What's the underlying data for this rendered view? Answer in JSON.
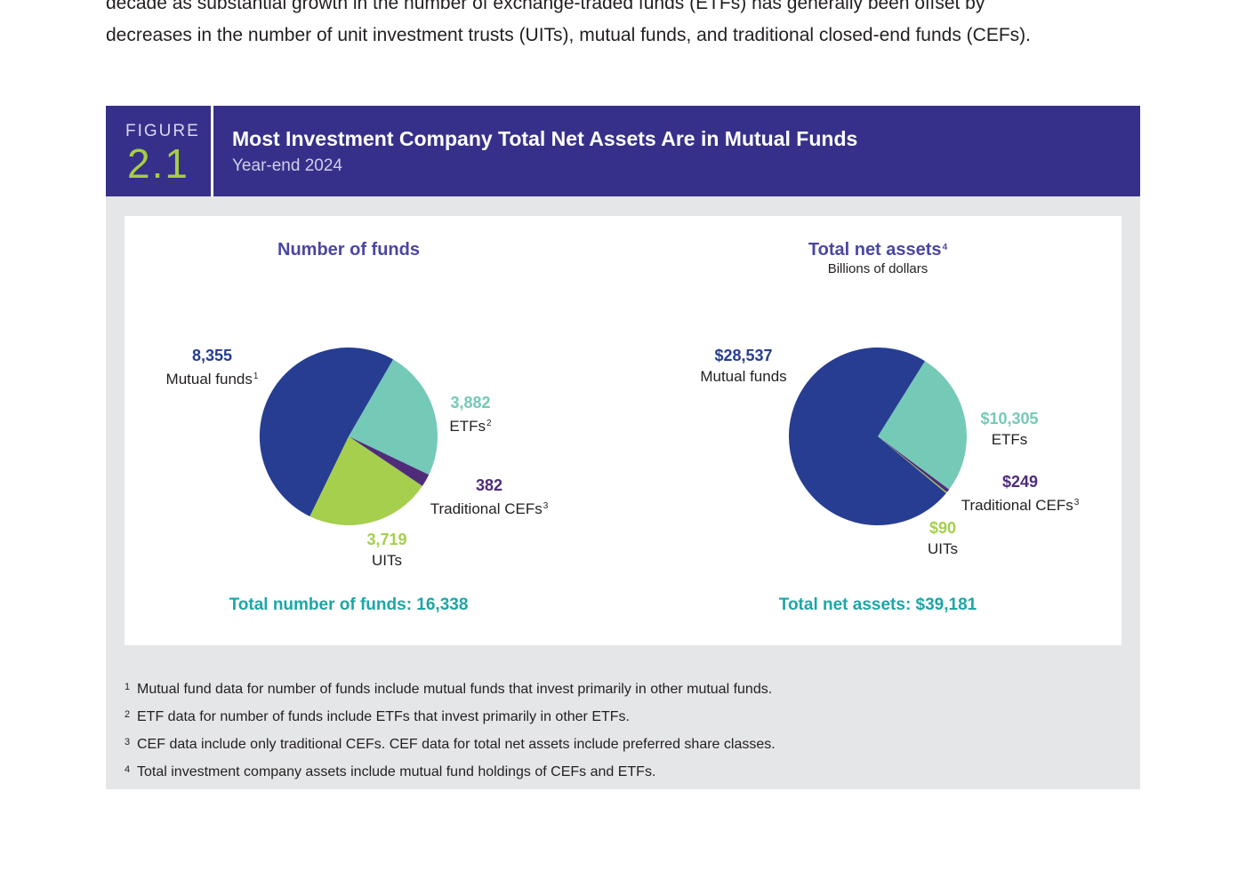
{
  "intro_text": "decade as substantial growth in the number of exchange-traded funds (ETFs) has generally been offset by decreases in the number of unit investment trusts (UITs), mutual funds, and traditional closed-end funds (CEFs).",
  "figure": {
    "word": "FIGURE",
    "number": "2.1",
    "title": "Most Investment Company Total Net Assets Are in Mutual Funds",
    "subtitle": "Year-end 2024"
  },
  "colors": {
    "header_bg": "#37308a",
    "mutual_funds": "#263d92",
    "etfs": "#75c9b7",
    "traditional_cefs": "#4f2c7a",
    "uits": "#a5cf4c",
    "total_text": "#1ca6a6"
  },
  "chart_data": [
    {
      "type": "pie",
      "title": "Number of funds",
      "subtitle": "",
      "slices": [
        {
          "key": "mutual_funds",
          "label": "Mutual funds",
          "sup": "1",
          "value": 8355,
          "display": "8,355"
        },
        {
          "key": "etfs",
          "label": "ETFs",
          "sup": "2",
          "value": 3882,
          "display": "3,882"
        },
        {
          "key": "traditional_cefs",
          "label": "Traditional CEFs",
          "sup": "3",
          "value": 382,
          "display": "382"
        },
        {
          "key": "uits",
          "label": "UITs",
          "sup": "",
          "value": 3719,
          "display": "3,719"
        }
      ],
      "total_label": "Total number of funds: 16,338"
    },
    {
      "type": "pie",
      "title": "Total net assets",
      "title_sup": "4",
      "subtitle": "Billions of dollars",
      "slices": [
        {
          "key": "mutual_funds",
          "label": "Mutual funds",
          "sup": "",
          "value": 28537,
          "display": "$28,537"
        },
        {
          "key": "etfs",
          "label": "ETFs",
          "sup": "",
          "value": 10305,
          "display": "$10,305"
        },
        {
          "key": "traditional_cefs",
          "label": "Traditional CEFs",
          "sup": "3",
          "value": 249,
          "display": "$249"
        },
        {
          "key": "uits",
          "label": "UITs",
          "sup": "",
          "value": 90,
          "display": "$90"
        }
      ],
      "total_label": "Total net assets: $39,181"
    }
  ],
  "footnotes": [
    {
      "marker": "1",
      "text": "Mutual fund data for number of funds include mutual funds that invest primarily in other mutual funds."
    },
    {
      "marker": "2",
      "text": "ETF data for number of funds include ETFs that invest primarily in other ETFs."
    },
    {
      "marker": "3",
      "text": "CEF data include only traditional CEFs. CEF data for total net assets include preferred share classes."
    },
    {
      "marker": "4",
      "text": "Total investment company assets include mutual fund holdings of CEFs and ETFs."
    }
  ]
}
